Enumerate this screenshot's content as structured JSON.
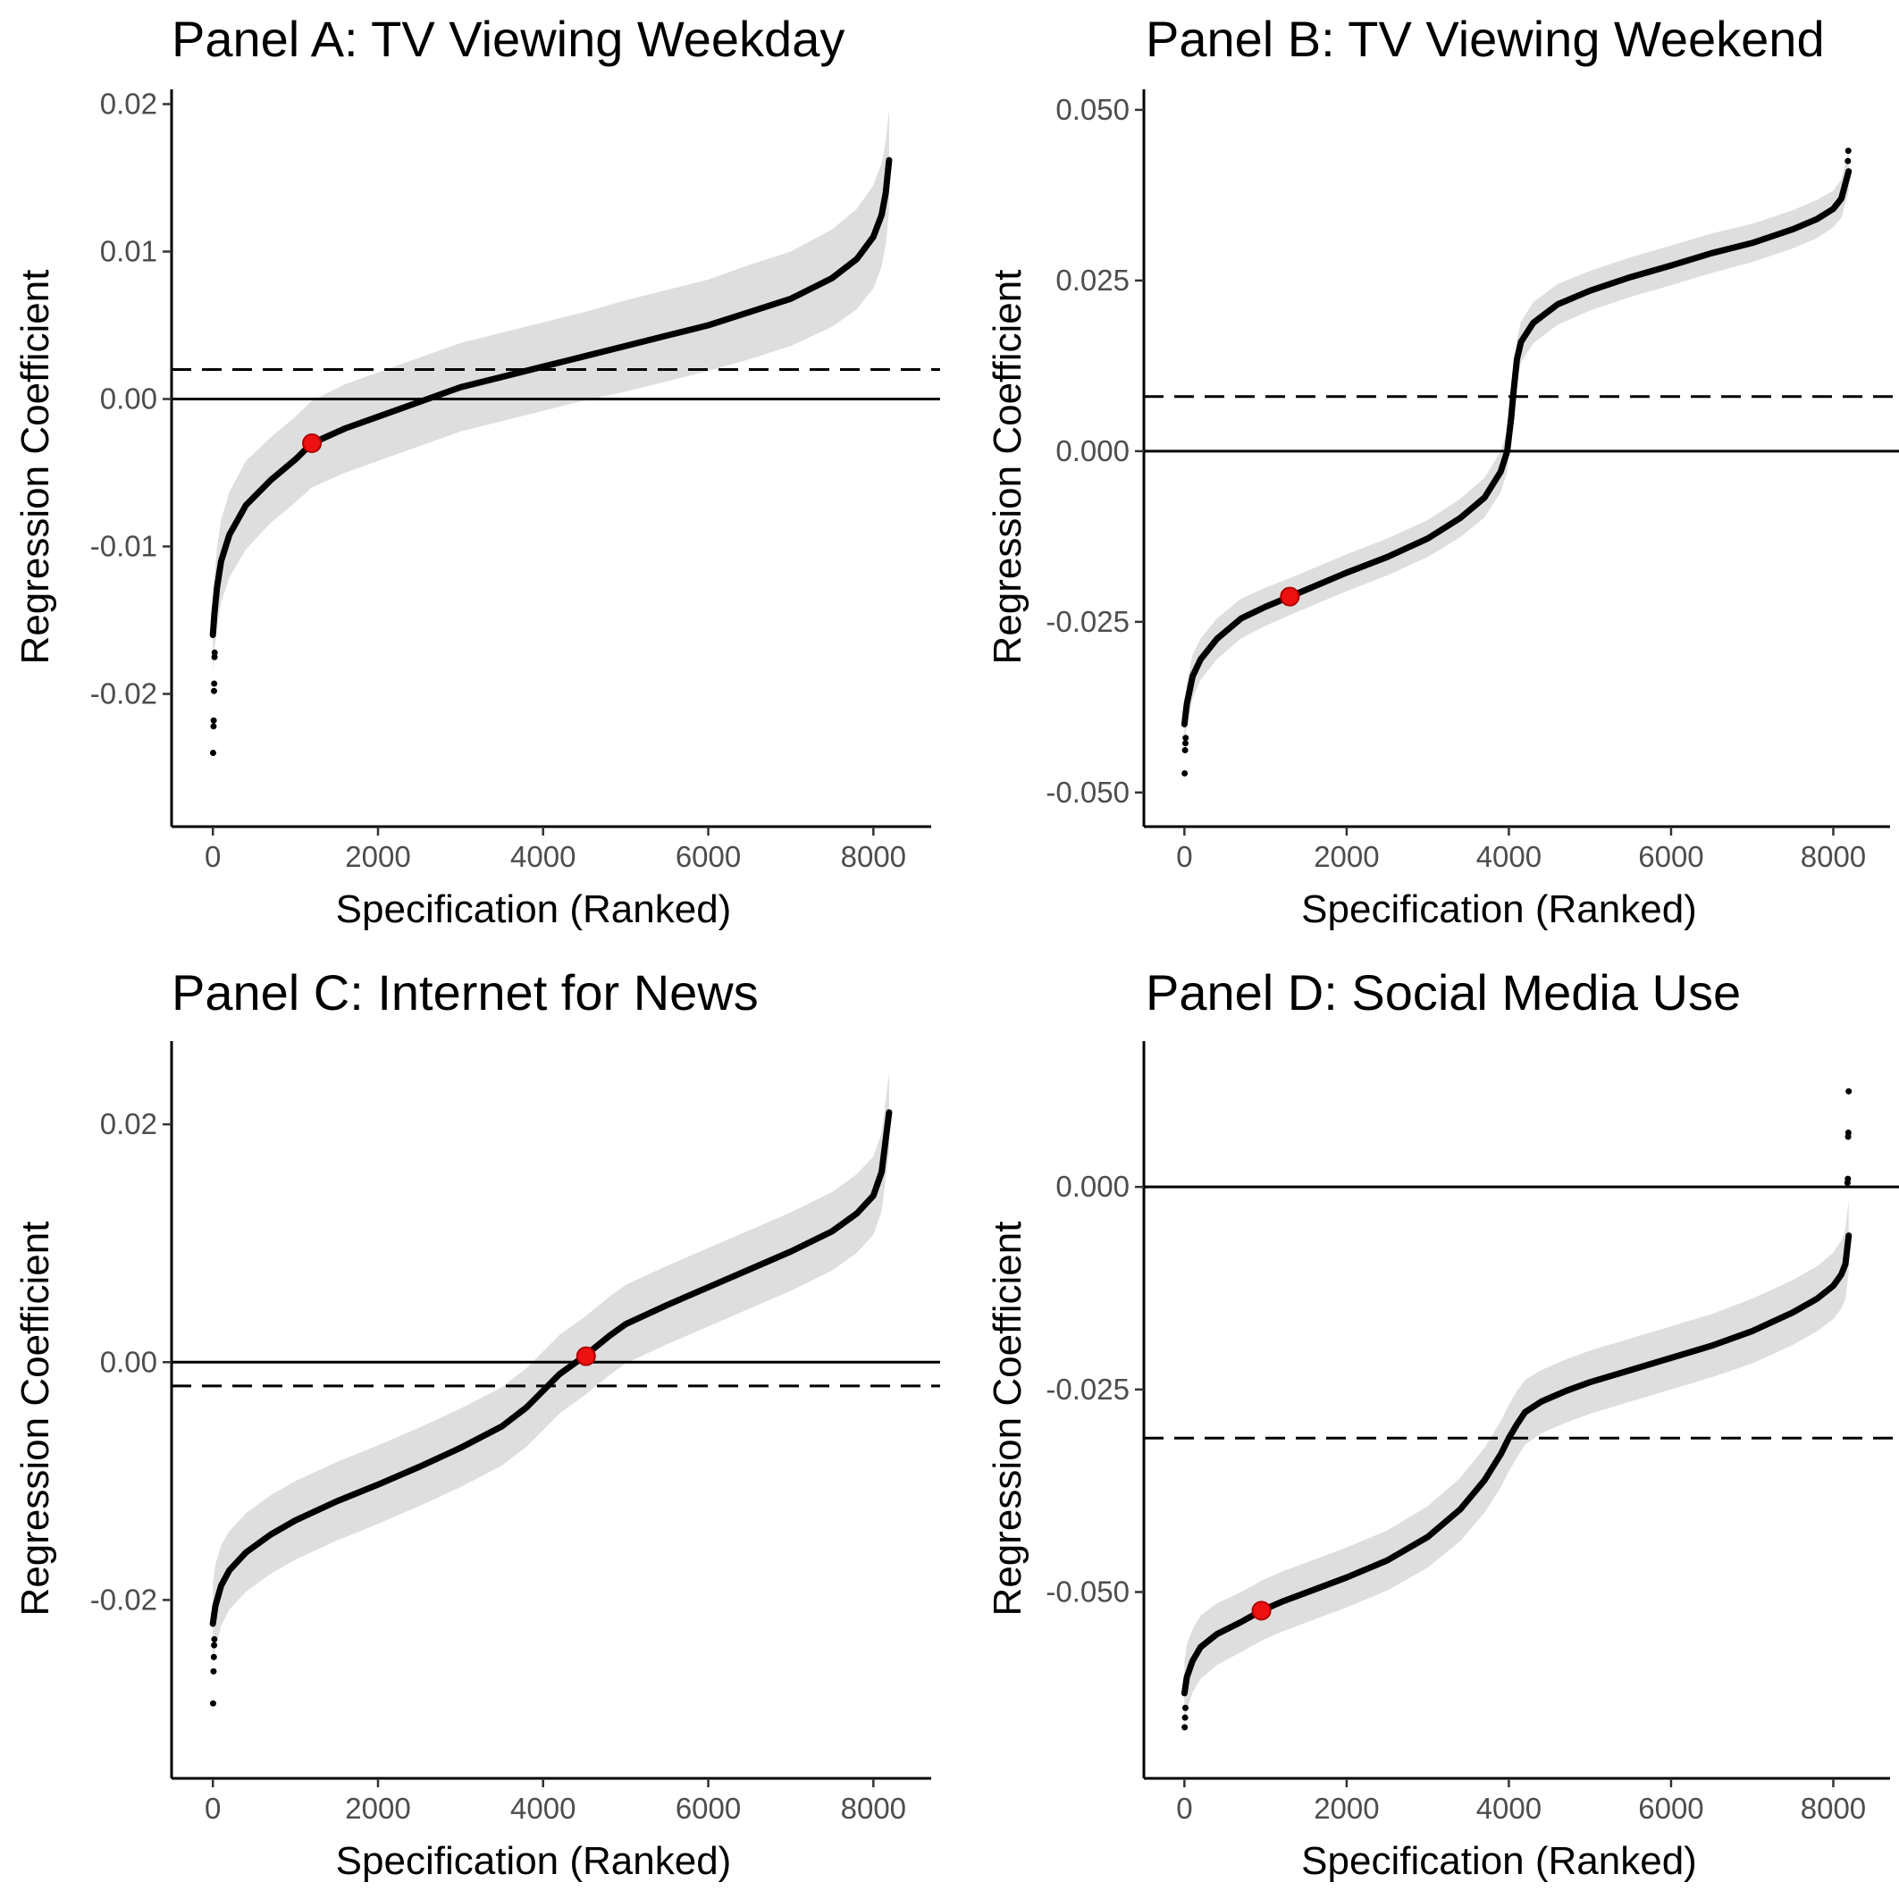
{
  "chart_data": [
    {
      "type": "scatter",
      "title": "Panel A: TV Viewing Weekday",
      "xlabel": "Specification (Ranked)",
      "ylabel": "Regression Coefficient",
      "xlim": [
        -500,
        8700
      ],
      "ylim": [
        -0.029,
        0.021
      ],
      "x_ticks": [
        0,
        2000,
        4000,
        6000,
        8000
      ],
      "x_tick_labels": [
        "0",
        "2000",
        "4000",
        "6000",
        "8000"
      ],
      "y_ticks": [
        -0.02,
        -0.01,
        0.0,
        0.01,
        0.02
      ],
      "y_tick_labels": [
        "-0.02",
        "-0.01",
        "0.00",
        "0.01",
        "0.02"
      ],
      "zero_line": 0.0,
      "median_line": 0.002,
      "grid": false,
      "legend": "none",
      "series": [
        {
          "x": [
            0,
            20,
            50,
            100,
            200,
            400,
            700,
            1000,
            1200,
            1600,
            2000,
            2600,
            3000,
            3500,
            4000,
            4500,
            5000,
            5500,
            6000,
            6500,
            7000,
            7500,
            7800,
            8000,
            8100,
            8150,
            8190
          ],
          "y": [
            -0.016,
            -0.0145,
            -0.0128,
            -0.011,
            -0.0092,
            -0.0072,
            -0.0055,
            -0.0041,
            -0.003,
            -0.002,
            -0.0012,
            0.0,
            0.0008,
            0.0015,
            0.0022,
            0.0029,
            0.0036,
            0.0043,
            0.005,
            0.0059,
            0.0068,
            0.0082,
            0.0095,
            0.011,
            0.0125,
            0.014,
            0.0162
          ],
          "ci_lower": [
            -0.0185,
            -0.017,
            -0.0155,
            -0.0138,
            -0.0121,
            -0.0102,
            -0.0084,
            -0.007,
            -0.006,
            -0.005,
            -0.0042,
            -0.003,
            -0.0022,
            -0.0015,
            -0.0008,
            -0.0001,
            0.0005,
            0.0012,
            0.0019,
            0.0027,
            0.0036,
            0.0049,
            0.0061,
            0.0075,
            0.009,
            0.0105,
            0.0127
          ],
          "ci_upper": [
            -0.0135,
            -0.012,
            -0.0101,
            -0.0082,
            -0.0063,
            -0.0042,
            -0.0026,
            -0.0012,
            -0.0001,
            0.001,
            0.0018,
            0.003,
            0.0038,
            0.0045,
            0.0052,
            0.0059,
            0.0067,
            0.0074,
            0.0081,
            0.0091,
            0.01,
            0.0115,
            0.0129,
            0.0145,
            0.016,
            0.0175,
            0.0197
          ],
          "outliers": [
            [
              3,
              -0.024
            ],
            [
              8,
              -0.0222
            ],
            [
              10,
              -0.0218
            ],
            [
              14,
              -0.0198
            ],
            [
              16,
              -0.0193
            ],
            [
              20,
              -0.0175
            ],
            [
              22,
              -0.0172
            ]
          ]
        }
      ],
      "highlight_point": {
        "x": 1200,
        "y": -0.003
      }
    },
    {
      "type": "scatter",
      "title": "Panel B: TV Viewing Weekend",
      "xlabel": "Specification (Ranked)",
      "ylabel": "Regression Coefficient",
      "xlim": [
        -500,
        8700
      ],
      "ylim": [
        -0.055,
        0.053
      ],
      "x_ticks": [
        0,
        2000,
        4000,
        6000,
        8000
      ],
      "x_tick_labels": [
        "0",
        "2000",
        "4000",
        "6000",
        "8000"
      ],
      "y_ticks": [
        -0.05,
        -0.025,
        0.0,
        0.025,
        0.05
      ],
      "y_tick_labels": [
        "-0.050",
        "-0.025",
        "0.000",
        "0.025",
        "0.050"
      ],
      "zero_line": 0.0,
      "median_line": 0.008,
      "grid": false,
      "legend": "none",
      "series": [
        {
          "x": [
            0,
            30,
            100,
            200,
            400,
            700,
            1000,
            1300,
            1600,
            2000,
            2500,
            3000,
            3400,
            3700,
            3900,
            3980,
            4030,
            4060,
            4100,
            4150,
            4300,
            4600,
            5000,
            5500,
            6000,
            6500,
            7000,
            7500,
            7800,
            8000,
            8100,
            8190
          ],
          "y": [
            -0.04,
            -0.037,
            -0.033,
            -0.0305,
            -0.0275,
            -0.0245,
            -0.0228,
            -0.0213,
            -0.0198,
            -0.0178,
            -0.0155,
            -0.0128,
            -0.0098,
            -0.0068,
            -0.003,
            0.0,
            0.005,
            0.009,
            0.0135,
            0.016,
            0.0188,
            0.0215,
            0.0235,
            0.0255,
            0.0272,
            0.029,
            0.0305,
            0.0325,
            0.034,
            0.0355,
            0.037,
            0.041
          ],
          "ci_lower": [
            -0.043,
            -0.04,
            -0.0362,
            -0.0335,
            -0.0305,
            -0.0274,
            -0.0256,
            -0.024,
            -0.0225,
            -0.0205,
            -0.0182,
            -0.0155,
            -0.0126,
            -0.0097,
            -0.006,
            -0.003,
            0.002,
            0.006,
            0.0105,
            0.013,
            0.0158,
            0.0185,
            0.0206,
            0.0226,
            0.0243,
            0.0261,
            0.0277,
            0.0297,
            0.0312,
            0.0328,
            0.0342,
            0.038
          ],
          "ci_upper": [
            -0.037,
            -0.034,
            -0.0298,
            -0.0275,
            -0.0245,
            -0.0216,
            -0.02,
            -0.0186,
            -0.0171,
            -0.0151,
            -0.0128,
            -0.0101,
            -0.007,
            -0.0039,
            0.0,
            0.003,
            0.008,
            0.012,
            0.0165,
            0.019,
            0.0218,
            0.0245,
            0.0264,
            0.0284,
            0.0301,
            0.0319,
            0.0333,
            0.0353,
            0.0368,
            0.0382,
            0.0398,
            0.044
          ],
          "outliers": [
            [
              3,
              -0.0472
            ],
            [
              8,
              -0.0438
            ],
            [
              12,
              -0.0428
            ],
            [
              15,
              -0.042
            ],
            [
              8180,
              0.0425
            ],
            [
              8185,
              0.044
            ]
          ]
        }
      ],
      "highlight_point": {
        "x": 1300,
        "y": -0.0213
      }
    },
    {
      "type": "scatter",
      "title": "Panel C: Internet for News",
      "xlabel": "Specification (Ranked)",
      "ylabel": "Regression Coefficient",
      "xlim": [
        -500,
        8700
      ],
      "ylim": [
        -0.035,
        0.027
      ],
      "x_ticks": [
        0,
        2000,
        4000,
        6000,
        8000
      ],
      "x_tick_labels": [
        "0",
        "2000",
        "4000",
        "6000",
        "8000"
      ],
      "y_ticks": [
        -0.02,
        0.0,
        0.02
      ],
      "y_tick_labels": [
        "-0.02",
        "0.00",
        "0.02"
      ],
      "zero_line": 0.0,
      "median_line": -0.002,
      "grid": false,
      "legend": "none",
      "series": [
        {
          "x": [
            0,
            30,
            100,
            200,
            400,
            700,
            1000,
            1500,
            2000,
            2500,
            3000,
            3500,
            3800,
            4000,
            4200,
            4500,
            4800,
            5000,
            5500,
            6000,
            6500,
            7000,
            7500,
            7800,
            8000,
            8100,
            8190
          ],
          "y": [
            -0.022,
            -0.0205,
            -0.0188,
            -0.0175,
            -0.016,
            -0.0145,
            -0.0133,
            -0.0117,
            -0.0103,
            -0.0088,
            -0.0072,
            -0.0054,
            -0.0038,
            -0.0024,
            -0.001,
            0.0005,
            0.0022,
            0.0032,
            0.0048,
            0.0063,
            0.0078,
            0.0093,
            0.011,
            0.0125,
            0.014,
            0.016,
            0.021
          ],
          "ci_lower": [
            -0.0255,
            -0.024,
            -0.0222,
            -0.0208,
            -0.0193,
            -0.0178,
            -0.0166,
            -0.015,
            -0.0136,
            -0.0121,
            -0.0105,
            -0.0087,
            -0.0071,
            -0.0057,
            -0.0043,
            -0.0028,
            -0.0011,
            -0.0001,
            0.0015,
            0.003,
            0.0045,
            0.006,
            0.0077,
            0.0092,
            0.0107,
            0.0127,
            0.0177
          ],
          "ci_upper": [
            -0.0185,
            -0.017,
            -0.0154,
            -0.0142,
            -0.0127,
            -0.0112,
            -0.01,
            -0.0084,
            -0.007,
            -0.0055,
            -0.0039,
            -0.0021,
            -0.0005,
            0.0009,
            0.0023,
            0.0038,
            0.0055,
            0.0065,
            0.0081,
            0.0096,
            0.0111,
            0.0126,
            0.0143,
            0.0158,
            0.0173,
            0.0193,
            0.0243
          ],
          "outliers": [
            [
              3,
              -0.0287
            ],
            [
              8,
              -0.026
            ],
            [
              12,
              -0.0248
            ],
            [
              15,
              -0.0238
            ],
            [
              18,
              -0.0233
            ]
          ]
        }
      ],
      "highlight_point": {
        "x": 4520,
        "y": 0.0005
      }
    },
    {
      "type": "scatter",
      "title": "Panel D: Social Media Use",
      "xlabel": "Specification (Ranked)",
      "ylabel": "Regression Coefficient",
      "xlim": [
        -500,
        8700
      ],
      "ylim": [
        -0.073,
        0.018
      ],
      "x_ticks": [
        0,
        2000,
        4000,
        6000,
        8000
      ],
      "x_tick_labels": [
        "0",
        "2000",
        "4000",
        "6000",
        "8000"
      ],
      "y_ticks": [
        -0.05,
        -0.025,
        0.0
      ],
      "y_tick_labels": [
        "-0.050",
        "-0.025",
        "0.000"
      ],
      "zero_line": 0.0,
      "median_line": -0.031,
      "grid": false,
      "legend": "none",
      "series": [
        {
          "x": [
            0,
            30,
            100,
            200,
            400,
            700,
            950,
            1200,
            1600,
            2000,
            2500,
            3000,
            3400,
            3700,
            3900,
            4000,
            4100,
            4200,
            4400,
            4700,
            5000,
            5500,
            6000,
            6500,
            7000,
            7500,
            7800,
            8000,
            8100,
            8150,
            8190
          ],
          "y": [
            -0.0625,
            -0.0605,
            -0.0585,
            -0.0568,
            -0.0552,
            -0.0537,
            -0.0523,
            -0.0512,
            -0.0497,
            -0.0482,
            -0.0461,
            -0.0432,
            -0.0398,
            -0.0362,
            -0.033,
            -0.031,
            -0.0293,
            -0.0278,
            -0.0265,
            -0.0252,
            -0.0241,
            -0.0226,
            -0.0211,
            -0.0196,
            -0.0178,
            -0.0155,
            -0.0138,
            -0.0122,
            -0.0108,
            -0.0095,
            -0.006
          ],
          "ci_lower": [
            -0.0665,
            -0.0645,
            -0.0624,
            -0.0607,
            -0.059,
            -0.0574,
            -0.056,
            -0.0549,
            -0.0534,
            -0.0519,
            -0.0498,
            -0.047,
            -0.0437,
            -0.0402,
            -0.0371,
            -0.0351,
            -0.0334,
            -0.0318,
            -0.0304,
            -0.0291,
            -0.028,
            -0.0265,
            -0.025,
            -0.0235,
            -0.0218,
            -0.0195,
            -0.0178,
            -0.0163,
            -0.015,
            -0.0138,
            -0.0105
          ],
          "ci_upper": [
            -0.0585,
            -0.0565,
            -0.0546,
            -0.0529,
            -0.0514,
            -0.05,
            -0.0486,
            -0.0475,
            -0.046,
            -0.0445,
            -0.0424,
            -0.0394,
            -0.0359,
            -0.0322,
            -0.0289,
            -0.0269,
            -0.0252,
            -0.0238,
            -0.0226,
            -0.0213,
            -0.0202,
            -0.0187,
            -0.0172,
            -0.0157,
            -0.0138,
            -0.0115,
            -0.0098,
            -0.0081,
            -0.0066,
            -0.0052,
            -0.0015
          ],
          "outliers": [
            [
              3,
              -0.0667
            ],
            [
              8,
              -0.0655
            ],
            [
              12,
              -0.0643
            ],
            [
              8175,
              0.0005
            ],
            [
              8180,
              0.001
            ],
            [
              8183,
              0.0062
            ],
            [
              8186,
              0.0067
            ],
            [
              8190,
              0.0118
            ]
          ]
        }
      ],
      "highlight_point": {
        "x": 950,
        "y": -0.0523
      }
    }
  ]
}
